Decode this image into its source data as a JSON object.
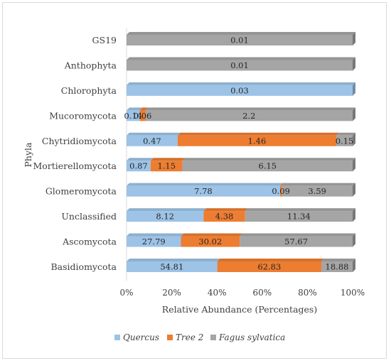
{
  "chart_data": {
    "type": "bar",
    "orientation": "horizontal",
    "stacked": "percent",
    "categories": [
      "GS19",
      "Anthophyta",
      "Chlorophyta",
      "Mucoromycota",
      "Chytridiomycota",
      "Mortierellomycota",
      "Glomeromycota",
      "Unclassified",
      "Ascomycota",
      "Basidiomycota"
    ],
    "series": [
      {
        "name": "Quercus",
        "color": "#9dc3e6",
        "values": [
          0,
          0,
          0.03,
          0.14,
          0.47,
          0.87,
          7.78,
          8.12,
          27.79,
          54.81
        ],
        "labels": [
          "",
          "",
          "0.03",
          "0.14",
          "0.47",
          "0.87",
          "7.78",
          "8.12",
          "27.79",
          "54.81"
        ]
      },
      {
        "name": "Tree 2",
        "color": "#ed7d31",
        "values": [
          0,
          0,
          0,
          0.06,
          1.46,
          1.15,
          0.09,
          4.38,
          30.02,
          62.83
        ],
        "labels": [
          "",
          "",
          "",
          "0.06",
          "1.46",
          "1.15",
          "0.09",
          "4.38",
          "30.02",
          "62.83"
        ]
      },
      {
        "name": "Fagus sylvatica",
        "color": "#a5a5a5",
        "values": [
          0.01,
          0.01,
          0,
          2.2,
          0.15,
          6.15,
          3.59,
          11.34,
          57.67,
          18.88
        ],
        "labels": [
          "0.01",
          "0.01",
          "",
          "2.2",
          "0.15",
          "6.15",
          "3.59",
          "11.34",
          "57.67",
          "18.88"
        ]
      }
    ],
    "xticks": [
      "0%",
      "20%",
      "40%",
      "60%",
      "80%",
      "100%"
    ],
    "xlabel": "Relative Abundance (Percentages)",
    "ylabel": "Phyla",
    "xlim": [
      0,
      100
    ],
    "grid": false,
    "legend_position": "bottom"
  }
}
